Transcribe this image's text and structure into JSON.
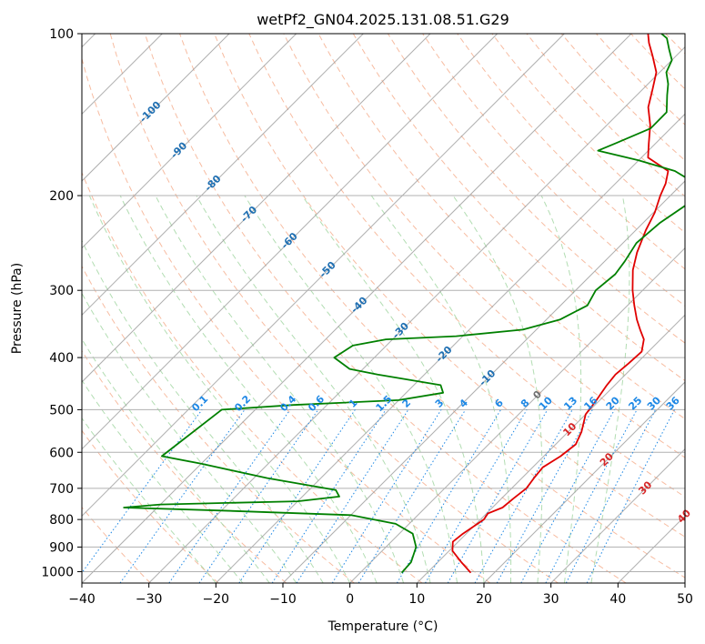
{
  "chart_data": {
    "type": "line",
    "title": "wetPf2_GN04.2025.131.08.51.G29",
    "xlabel": "Temperature (°C)",
    "ylabel": "Pressure (hPa)",
    "xlim": [
      -40,
      50
    ],
    "ylim": [
      1050,
      100
    ],
    "y_scale": "log",
    "x_ticks": [
      "−40",
      "−30",
      "−20",
      "−10",
      "0",
      "10",
      "20",
      "30",
      "40",
      "50"
    ],
    "y_ticks": [
      {
        "p": 100,
        "label": "100"
      },
      {
        "p": 200,
        "label": "200"
      },
      {
        "p": 300,
        "label": "300"
      },
      {
        "p": 400,
        "label": "400"
      },
      {
        "p": 500,
        "label": "500"
      },
      {
        "p": 600,
        "label": "600"
      },
      {
        "p": 700,
        "label": "700"
      },
      {
        "p": 800,
        "label": "800"
      },
      {
        "p": 900,
        "label": "900"
      },
      {
        "p": 1000,
        "label": "1000"
      }
    ],
    "grid": true,
    "skew_degrees": 45,
    "colors": {
      "temperature": "#e00000",
      "dewpoint": "#008000",
      "isotherm": "#9a9a9a",
      "dry_adiabat": "#f4a582",
      "moist_adiabat": "#9fd49f",
      "mixing_ratio": "#1e88e5",
      "far_adiabat": "#d2b48c"
    },
    "series": [
      {
        "color": "#e00000",
        "points": [
          {
            "t": 16.5,
            "p": 1005
          },
          {
            "t": 13.5,
            "p": 960
          },
          {
            "t": 10.5,
            "p": 915
          },
          {
            "t": 9.2,
            "p": 880
          },
          {
            "t": 9.5,
            "p": 850
          },
          {
            "t": 10.5,
            "p": 800
          },
          {
            "t": 10.2,
            "p": 780
          },
          {
            "t": 11.5,
            "p": 760
          },
          {
            "t": 11.8,
            "p": 730
          },
          {
            "t": 12.2,
            "p": 700
          },
          {
            "t": 11.8,
            "p": 670
          },
          {
            "t": 11.5,
            "p": 640
          },
          {
            "t": 12.5,
            "p": 610
          },
          {
            "t": 13.0,
            "p": 580
          },
          {
            "t": 12.0,
            "p": 550
          },
          {
            "t": 10.0,
            "p": 510
          },
          {
            "t": 9.5,
            "p": 480
          },
          {
            "t": 8.8,
            "p": 450
          },
          {
            "t": 8.5,
            "p": 430
          },
          {
            "t": 8.8,
            "p": 410
          },
          {
            "t": 9.0,
            "p": 390
          },
          {
            "t": 7.5,
            "p": 370
          },
          {
            "t": 5.5,
            "p": 355
          },
          {
            "t": 3.5,
            "p": 340
          },
          {
            "t": 1.0,
            "p": 320
          },
          {
            "t": -1.5,
            "p": 300
          },
          {
            "t": -4.5,
            "p": 275
          },
          {
            "t": -6.5,
            "p": 255
          },
          {
            "t": -8.5,
            "p": 232
          },
          {
            "t": -9.8,
            "p": 215
          },
          {
            "t": -11.5,
            "p": 200
          },
          {
            "t": -12.5,
            "p": 190
          },
          {
            "t": -14.0,
            "p": 180
          },
          {
            "t": -19.0,
            "p": 170
          },
          {
            "t": -21.0,
            "p": 160
          },
          {
            "t": -23.5,
            "p": 148
          },
          {
            "t": -26.5,
            "p": 137
          },
          {
            "t": -28.5,
            "p": 127
          },
          {
            "t": -30.5,
            "p": 118
          },
          {
            "t": -33.5,
            "p": 110
          },
          {
            "t": -36.0,
            "p": 104
          },
          {
            "t": -37.5,
            "p": 100
          }
        ]
      },
      {
        "color": "#008000",
        "points": [
          {
            "t": 6.2,
            "p": 1005
          },
          {
            "t": 6.0,
            "p": 960
          },
          {
            "t": 4.5,
            "p": 900
          },
          {
            "t": 2.0,
            "p": 850
          },
          {
            "t": -2.0,
            "p": 815
          },
          {
            "t": -10.0,
            "p": 785
          },
          {
            "t": -30.0,
            "p": 770
          },
          {
            "t": -45.0,
            "p": 760
          },
          {
            "t": -40.0,
            "p": 750
          },
          {
            "t": -20.0,
            "p": 740
          },
          {
            "t": -14.5,
            "p": 725
          },
          {
            "t": -16.0,
            "p": 705
          },
          {
            "t": -28.0,
            "p": 670
          },
          {
            "t": -40.0,
            "p": 630
          },
          {
            "t": -47.0,
            "p": 610
          },
          {
            "t": -45.0,
            "p": 500
          },
          {
            "t": -35.0,
            "p": 490
          },
          {
            "t": -20.0,
            "p": 480
          },
          {
            "t": -14.5,
            "p": 465
          },
          {
            "t": -16.0,
            "p": 450
          },
          {
            "t": -27.0,
            "p": 430
          },
          {
            "t": -32.0,
            "p": 420
          },
          {
            "t": -36.0,
            "p": 400
          },
          {
            "t": -35.0,
            "p": 380
          },
          {
            "t": -31.0,
            "p": 370
          },
          {
            "t": -21.0,
            "p": 365
          },
          {
            "t": -12.0,
            "p": 355
          },
          {
            "t": -8.0,
            "p": 340
          },
          {
            "t": -6.0,
            "p": 320
          },
          {
            "t": -7.0,
            "p": 300
          },
          {
            "t": -6.5,
            "p": 280
          },
          {
            "t": -7.0,
            "p": 265
          },
          {
            "t": -8.0,
            "p": 245
          },
          {
            "t": -7.5,
            "p": 225
          },
          {
            "t": -6.0,
            "p": 205
          },
          {
            "t": -8.0,
            "p": 190
          },
          {
            "t": -13.0,
            "p": 180
          },
          {
            "t": -20.0,
            "p": 172
          },
          {
            "t": -27.5,
            "p": 165
          },
          {
            "t": -26.0,
            "p": 160
          },
          {
            "t": -23.0,
            "p": 150
          },
          {
            "t": -23.0,
            "p": 140
          },
          {
            "t": -25.5,
            "p": 130
          },
          {
            "t": -27.0,
            "p": 124
          },
          {
            "t": -29.0,
            "p": 118
          },
          {
            "t": -30.0,
            "p": 112
          },
          {
            "t": -32.0,
            "p": 107
          },
          {
            "t": -34.0,
            "p": 102
          },
          {
            "t": -35.5,
            "p": 100
          }
        ]
      }
    ],
    "isotherm_labels": [
      {
        "t": -100,
        "label": "-100"
      },
      {
        "t": -90,
        "label": "-90"
      },
      {
        "t": -80,
        "label": "-80"
      },
      {
        "t": -70,
        "label": "-70"
      },
      {
        "t": -60,
        "label": "-60"
      },
      {
        "t": -50,
        "label": "-50"
      },
      {
        "t": -40,
        "label": "-40"
      },
      {
        "t": -30,
        "label": "-30"
      },
      {
        "t": -20,
        "label": "-20"
      },
      {
        "t": -10,
        "label": "-10"
      },
      {
        "t": 0,
        "label": "0"
      },
      {
        "t": 10,
        "label": "10"
      },
      {
        "t": 20,
        "label": "20"
      },
      {
        "t": 30,
        "label": "30"
      },
      {
        "t": 40,
        "label": "40"
      }
    ],
    "mixing_ratio_labels": [
      "0.1",
      "0.2",
      "0.4",
      "0.6",
      "1",
      "1.5",
      "2",
      "3",
      "4",
      "6",
      "8",
      "10",
      "13",
      "16",
      "20",
      "25",
      "30",
      "36"
    ],
    "mixing_ratio_values": [
      0.1,
      0.2,
      0.4,
      0.6,
      1,
      1.5,
      2,
      3,
      4,
      6,
      8,
      10,
      13,
      16,
      20,
      25,
      30,
      36
    ]
  }
}
